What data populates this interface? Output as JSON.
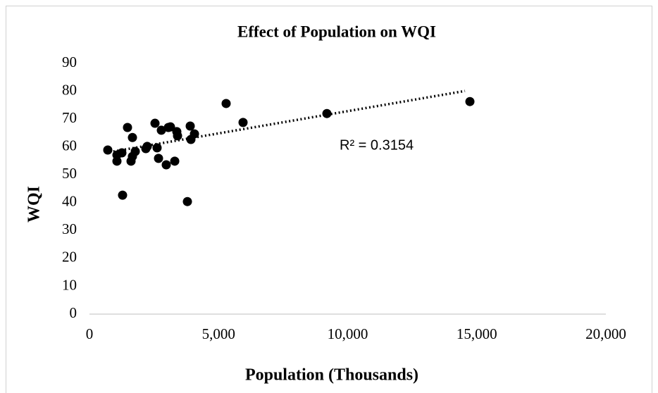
{
  "chart_data": {
    "type": "scatter",
    "title": "Effect of Population on WQI",
    "x_label": "Population (Thousands)",
    "y_label": "WQI",
    "series": [
      {
        "color": "#000000",
        "x": [
          709,
          1064,
          1064,
          1255,
          1282,
          1473,
          1610,
          1664,
          1664,
          1774,
          2183,
          2237,
          2538,
          2619,
          2674,
          2783,
          2974,
          3056,
          3138,
          3302,
          3383,
          3411,
          3793,
          3902,
          3929,
          4066,
          5293,
          5948,
          9195,
          14734
        ],
        "values": [
          58.9,
          54.9,
          57.1,
          57.9,
          42.7,
          67.0,
          54.9,
          63.4,
          56.6,
          58.4,
          59.4,
          60.2,
          68.5,
          59.7,
          55.9,
          66.0,
          53.6,
          67.0,
          67.2,
          54.9,
          65.5,
          64.0,
          40.4,
          67.5,
          62.7,
          64.7,
          75.6,
          68.8,
          72.0,
          76.3
        ]
      }
    ],
    "trendline": {
      "x": [
        627,
        14543
      ],
      "values": [
        57.9,
        80.1
      ],
      "label": "R² = 0.3154"
    },
    "xlim": [
      0,
      20000
    ],
    "xticks": [
      0,
      {
        "value": 5000,
        "label": "5,000"
      },
      {
        "value": 10000,
        "label": "10,000"
      },
      {
        "value": 15000,
        "label": "15,000"
      },
      {
        "value": 20000,
        "label": "20,000"
      }
    ],
    "ylim": [
      0,
      90
    ],
    "yticks": [
      0,
      10,
      20,
      30,
      40,
      50,
      60,
      70,
      80,
      90
    ],
    "grid": false
  }
}
